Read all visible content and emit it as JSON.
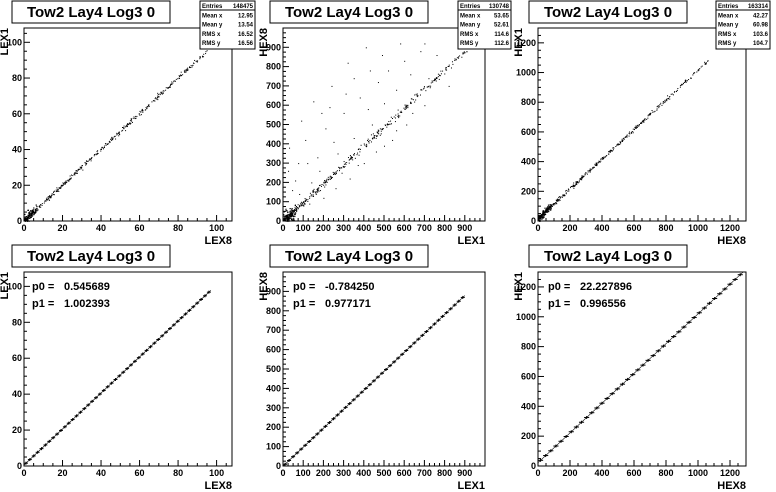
{
  "chart_data": [
    {
      "type": "scatter",
      "title": "Tow2 Lay4 Log3 0",
      "xlabel": "LEX8",
      "ylabel": "LEX1",
      "xlim": [
        0,
        108
      ],
      "ylim": [
        0,
        108
      ],
      "x_ticks": [
        0,
        20,
        40,
        60,
        80,
        100
      ],
      "y_ticks": [
        0,
        20,
        40,
        60,
        80,
        100
      ],
      "stats": [
        {
          "label": "Entries",
          "value": "148475"
        },
        {
          "label": "Mean x",
          "value": "12.95"
        },
        {
          "label": "Mean y",
          "value": "13.54"
        },
        {
          "label": "RMS x",
          "value": "16.52"
        },
        {
          "label": "RMS y",
          "value": "16.56"
        }
      ],
      "trend": {
        "slope": 1.0,
        "intercept": 0.5,
        "x_range": [
          0,
          97
        ],
        "spread": 1.2
      },
      "outliers": []
    },
    {
      "type": "scatter",
      "title": "Tow2 Lay4 Log3 0",
      "xlabel": "LEX1",
      "ylabel": "HEX8",
      "xlim": [
        0,
        1000
      ],
      "ylim": [
        0,
        1000
      ],
      "x_ticks": [
        0,
        100,
        200,
        300,
        400,
        500,
        600,
        700,
        800,
        900
      ],
      "y_ticks": [
        0,
        100,
        200,
        300,
        400,
        500,
        600,
        700,
        800,
        900
      ],
      "stats": [
        {
          "label": "Entries",
          "value": "130748"
        },
        {
          "label": "Mean x",
          "value": "53.65"
        },
        {
          "label": "Mean y",
          "value": "52.61"
        },
        {
          "label": "RMS x",
          "value": "114.6"
        },
        {
          "label": "RMS y",
          "value": "112.6"
        }
      ],
      "trend": {
        "slope": 0.98,
        "intercept": 0,
        "x_range": [
          0,
          950
        ],
        "spread": 18
      },
      "outliers": [
        [
          30,
          380
        ],
        [
          60,
          210
        ],
        [
          90,
          520
        ],
        [
          120,
          300
        ],
        [
          150,
          620
        ],
        [
          180,
          260
        ],
        [
          210,
          480
        ],
        [
          240,
          700
        ],
        [
          270,
          350
        ],
        [
          300,
          560
        ],
        [
          320,
          820
        ],
        [
          350,
          430
        ],
        [
          380,
          640
        ],
        [
          410,
          900
        ],
        [
          440,
          500
        ],
        [
          470,
          720
        ],
        [
          500,
          610
        ],
        [
          520,
          780
        ],
        [
          560,
          680
        ],
        [
          600,
          830
        ],
        [
          640,
          560
        ],
        [
          680,
          880
        ],
        [
          720,
          740
        ],
        [
          760,
          860
        ],
        [
          80,
          140
        ],
        [
          130,
          90
        ],
        [
          200,
          120
        ],
        [
          260,
          170
        ],
        [
          330,
          220
        ],
        [
          400,
          300
        ],
        [
          460,
          360
        ],
        [
          540,
          420
        ],
        [
          610,
          500
        ],
        [
          700,
          600
        ],
        [
          820,
          700
        ],
        [
          45,
          160
        ],
        [
          110,
          420
        ],
        [
          170,
          330
        ],
        [
          230,
          590
        ],
        [
          290,
          250
        ],
        [
          350,
          740
        ],
        [
          420,
          580
        ],
        [
          490,
          860
        ],
        [
          560,
          470
        ],
        [
          630,
          760
        ],
        [
          700,
          920
        ],
        [
          25,
          260
        ],
        [
          75,
          300
        ],
        [
          140,
          200
        ],
        [
          190,
          560
        ],
        [
          250,
          410
        ],
        [
          310,
          660
        ],
        [
          370,
          290
        ],
        [
          430,
          780
        ],
        [
          500,
          390
        ],
        [
          580,
          920
        ]
      ]
    },
    {
      "type": "scatter",
      "title": "Tow2 Lay4 Log3 0",
      "xlabel": "HEX8",
      "ylabel": "HEX1",
      "xlim": [
        0,
        1300
      ],
      "ylim": [
        0,
        1300
      ],
      "x_ticks": [
        0,
        200,
        400,
        600,
        800,
        1000,
        1200
      ],
      "y_ticks": [
        0,
        200,
        400,
        600,
        800,
        1000,
        1200
      ],
      "stats": [
        {
          "label": "Entries",
          "value": "163314"
        },
        {
          "label": "Mean x",
          "value": "42.27"
        },
        {
          "label": "Mean y",
          "value": "60.98"
        },
        {
          "label": "RMS x",
          "value": "103.6"
        },
        {
          "label": "RMS y",
          "value": "104.7"
        }
      ],
      "trend": {
        "slope": 1.0,
        "intercept": 22,
        "x_range": [
          0,
          1060
        ],
        "spread": 12
      },
      "outliers": []
    },
    {
      "type": "line",
      "title": "Tow2 Lay4 Log3 0",
      "xlabel": "LEX8",
      "ylabel": "LEX1",
      "xlim": [
        0,
        108
      ],
      "ylim": [
        0,
        108
      ],
      "x_ticks": [
        0,
        20,
        40,
        60,
        80,
        100
      ],
      "y_ticks": [
        0,
        20,
        40,
        60,
        80,
        100
      ],
      "fit": [
        {
          "label": "p0 =",
          "value": "0.545689"
        },
        {
          "label": "p1 =",
          "value": "1.002393"
        }
      ],
      "p0": 0.545689,
      "p1": 1.002393,
      "x_range": [
        0,
        97
      ],
      "bins": 48
    },
    {
      "type": "line",
      "title": "Tow2 Lay4 Log3 0",
      "xlabel": "LEX1",
      "ylabel": "HEX8",
      "xlim": [
        0,
        1000
      ],
      "ylim": [
        0,
        1000
      ],
      "x_ticks": [
        0,
        100,
        200,
        300,
        400,
        500,
        600,
        700,
        800,
        900
      ],
      "y_ticks": [
        0,
        100,
        200,
        300,
        400,
        500,
        600,
        700,
        800,
        900
      ],
      "fit": [
        {
          "label": "p0 =",
          "value": "-0.784250"
        },
        {
          "label": "p1 =",
          "value": "0.977171"
        }
      ],
      "p0": -0.78425,
      "p1": 0.977171,
      "x_range": [
        0,
        900
      ],
      "bins": 45
    },
    {
      "type": "line",
      "title": "Tow2 Lay4 Log3 0",
      "xlabel": "HEX8",
      "ylabel": "HEX1",
      "xlim": [
        0,
        1300
      ],
      "ylim": [
        0,
        1300
      ],
      "x_ticks": [
        0,
        200,
        400,
        600,
        800,
        1000,
        1200
      ],
      "y_ticks": [
        0,
        200,
        400,
        600,
        800,
        1000,
        1200
      ],
      "fit": [
        {
          "label": "p0 =",
          "value": "22.227896"
        },
        {
          "label": "p1 =",
          "value": "0.996556"
        }
      ],
      "p0": 22.227896,
      "p1": 0.996556,
      "x_range": [
        0,
        1280
      ],
      "bins": 40
    }
  ]
}
